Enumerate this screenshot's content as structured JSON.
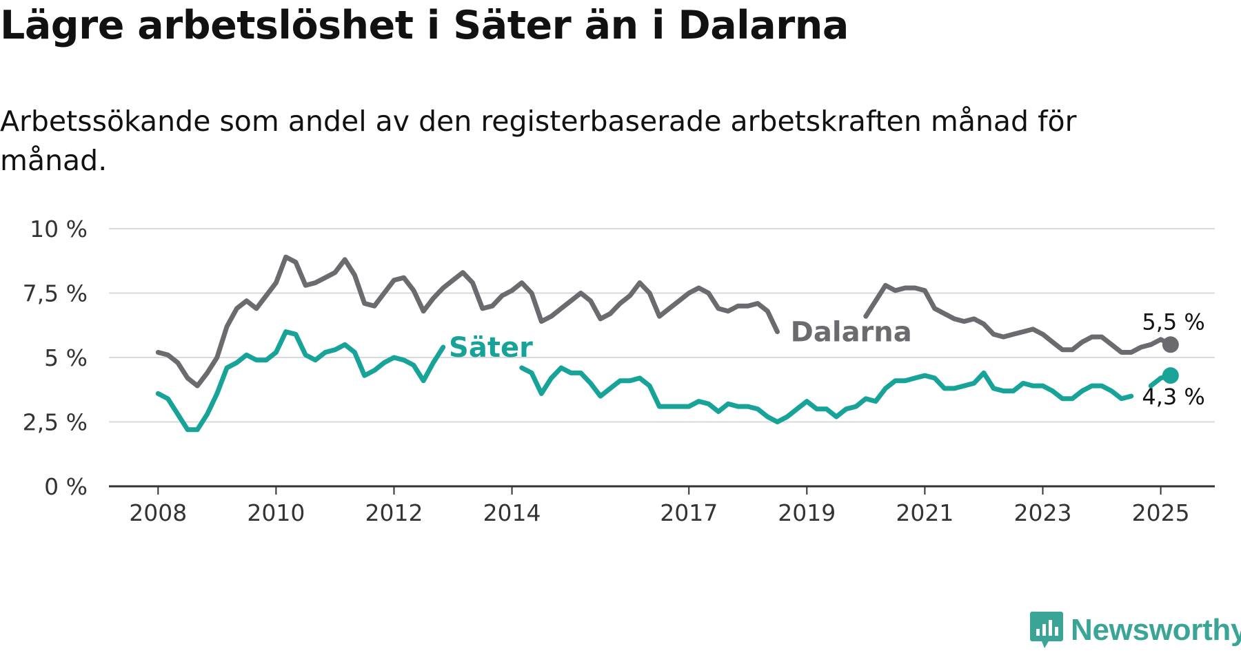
{
  "title": "Lägre arbetslöshet i Säter än i Dalarna",
  "subtitle": "Arbetssökande som andel av den registerbaserade arbetskraften månad för månad.",
  "brand": {
    "name": "Newsworthy",
    "icon": "newsworthy-logo-icon",
    "color": "#3aa596"
  },
  "chart_data": {
    "type": "line",
    "title": "Lägre arbetslöshet i Säter än i Dalarna",
    "subtitle": "Arbetssökande som andel av den registerbaserade arbetskraften månad för månad.",
    "xlabel": "",
    "ylabel": "",
    "x_ticks": [
      "2008",
      "2010",
      "2012",
      "2014",
      "2017",
      "2019",
      "2021",
      "2023",
      "2025"
    ],
    "y_ticks": [
      "0 %",
      "2,5 %",
      "5 %",
      "7,5 %",
      "10 %"
    ],
    "ylim": [
      0,
      10
    ],
    "xlim": [
      "2007-03",
      "2025-12"
    ],
    "grid": "horizontal",
    "legend": "inline-labels",
    "series": [
      {
        "name": "Dalarna",
        "color": "#6b6b6f",
        "end_label": "5,5 %",
        "points": [
          [
            "2008-01",
            5.2
          ],
          [
            "2008-03",
            5.1
          ],
          [
            "2008-05",
            4.8
          ],
          [
            "2008-07",
            4.2
          ],
          [
            "2008-09",
            3.9
          ],
          [
            "2008-11",
            4.4
          ],
          [
            "2009-01",
            5.0
          ],
          [
            "2009-03",
            6.2
          ],
          [
            "2009-05",
            6.9
          ],
          [
            "2009-07",
            7.2
          ],
          [
            "2009-09",
            6.9
          ],
          [
            "2009-11",
            7.4
          ],
          [
            "2010-01",
            7.9
          ],
          [
            "2010-03",
            8.9
          ],
          [
            "2010-05",
            8.7
          ],
          [
            "2010-07",
            7.8
          ],
          [
            "2010-09",
            7.9
          ],
          [
            "2010-11",
            8.1
          ],
          [
            "2011-01",
            8.3
          ],
          [
            "2011-03",
            8.8
          ],
          [
            "2011-05",
            8.2
          ],
          [
            "2011-07",
            7.1
          ],
          [
            "2011-09",
            7.0
          ],
          [
            "2011-11",
            7.5
          ],
          [
            "2012-01",
            8.0
          ],
          [
            "2012-03",
            8.1
          ],
          [
            "2012-05",
            7.6
          ],
          [
            "2012-07",
            6.8
          ],
          [
            "2012-09",
            7.3
          ],
          [
            "2012-11",
            7.7
          ],
          [
            "2013-01",
            8.0
          ],
          [
            "2013-03",
            8.3
          ],
          [
            "2013-05",
            7.9
          ],
          [
            "2013-07",
            6.9
          ],
          [
            "2013-09",
            7.0
          ],
          [
            "2013-11",
            7.4
          ],
          [
            "2014-01",
            7.6
          ],
          [
            "2014-03",
            7.9
          ],
          [
            "2014-05",
            7.5
          ],
          [
            "2014-07",
            6.4
          ],
          [
            "2014-09",
            6.6
          ],
          [
            "2014-11",
            6.9
          ],
          [
            "2015-01",
            7.2
          ],
          [
            "2015-03",
            7.5
          ],
          [
            "2015-05",
            7.2
          ],
          [
            "2015-07",
            6.5
          ],
          [
            "2015-09",
            6.7
          ],
          [
            "2015-11",
            7.1
          ],
          [
            "2016-01",
            7.4
          ],
          [
            "2016-03",
            7.9
          ],
          [
            "2016-05",
            7.5
          ],
          [
            "2016-07",
            6.6
          ],
          [
            "2016-09",
            6.9
          ],
          [
            "2016-11",
            7.2
          ],
          [
            "2017-01",
            7.5
          ],
          [
            "2017-03",
            7.7
          ],
          [
            "2017-05",
            7.5
          ],
          [
            "2017-07",
            6.9
          ],
          [
            "2017-09",
            6.8
          ],
          [
            "2017-11",
            7.0
          ],
          [
            "2018-01",
            7.0
          ],
          [
            "2018-03",
            7.1
          ],
          [
            "2018-05",
            6.8
          ],
          [
            "2018-07",
            6.0
          ],
          [
            "2018-09",
            null
          ],
          [
            "2020-01",
            6.6
          ],
          [
            "2020-03",
            7.2
          ],
          [
            "2020-05",
            7.8
          ],
          [
            "2020-07",
            7.6
          ],
          [
            "2020-09",
            7.7
          ],
          [
            "2020-11",
            7.7
          ],
          [
            "2021-01",
            7.6
          ],
          [
            "2021-03",
            6.9
          ],
          [
            "2021-05",
            6.7
          ],
          [
            "2021-07",
            6.5
          ],
          [
            "2021-09",
            6.4
          ],
          [
            "2021-11",
            6.5
          ],
          [
            "2022-01",
            6.3
          ],
          [
            "2022-03",
            5.9
          ],
          [
            "2022-05",
            5.8
          ],
          [
            "2022-07",
            5.9
          ],
          [
            "2022-09",
            6.0
          ],
          [
            "2022-11",
            6.1
          ],
          [
            "2023-01",
            5.9
          ],
          [
            "2023-03",
            5.6
          ],
          [
            "2023-05",
            5.3
          ],
          [
            "2023-07",
            5.3
          ],
          [
            "2023-09",
            5.6
          ],
          [
            "2023-11",
            5.8
          ],
          [
            "2024-01",
            5.8
          ],
          [
            "2024-03",
            5.5
          ],
          [
            "2024-05",
            5.2
          ],
          [
            "2024-07",
            5.2
          ],
          [
            "2024-09",
            5.4
          ],
          [
            "2024-11",
            5.5
          ],
          [
            "2025-01",
            5.7
          ],
          [
            "2025-03",
            5.5
          ]
        ]
      },
      {
        "name": "Säter",
        "color": "#17a398",
        "end_label": "4,3 %",
        "points": [
          [
            "2008-01",
            3.6
          ],
          [
            "2008-03",
            3.4
          ],
          [
            "2008-05",
            2.8
          ],
          [
            "2008-07",
            2.2
          ],
          [
            "2008-09",
            2.2
          ],
          [
            "2008-11",
            2.8
          ],
          [
            "2009-01",
            3.6
          ],
          [
            "2009-03",
            4.6
          ],
          [
            "2009-05",
            4.8
          ],
          [
            "2009-07",
            5.1
          ],
          [
            "2009-09",
            4.9
          ],
          [
            "2009-11",
            4.9
          ],
          [
            "2010-01",
            5.2
          ],
          [
            "2010-03",
            6.0
          ],
          [
            "2010-05",
            5.9
          ],
          [
            "2010-07",
            5.1
          ],
          [
            "2010-09",
            4.9
          ],
          [
            "2010-11",
            5.2
          ],
          [
            "2011-01",
            5.3
          ],
          [
            "2011-03",
            5.5
          ],
          [
            "2011-05",
            5.2
          ],
          [
            "2011-07",
            4.3
          ],
          [
            "2011-09",
            4.5
          ],
          [
            "2011-11",
            4.8
          ],
          [
            "2012-01",
            5.0
          ],
          [
            "2012-03",
            4.9
          ],
          [
            "2012-05",
            4.7
          ],
          [
            "2012-07",
            4.1
          ],
          [
            "2012-09",
            4.8
          ],
          [
            "2012-11",
            5.4
          ],
          [
            "2013-01",
            null
          ],
          [
            "2014-03",
            4.6
          ],
          [
            "2014-05",
            4.4
          ],
          [
            "2014-07",
            3.6
          ],
          [
            "2014-09",
            4.2
          ],
          [
            "2014-11",
            4.6
          ],
          [
            "2015-01",
            4.4
          ],
          [
            "2015-03",
            4.4
          ],
          [
            "2015-05",
            4.0
          ],
          [
            "2015-07",
            3.5
          ],
          [
            "2015-09",
            3.8
          ],
          [
            "2015-11",
            4.1
          ],
          [
            "2016-01",
            4.1
          ],
          [
            "2016-03",
            4.2
          ],
          [
            "2016-05",
            3.9
          ],
          [
            "2016-07",
            3.1
          ],
          [
            "2016-09",
            3.1
          ],
          [
            "2016-11",
            3.1
          ],
          [
            "2017-01",
            3.1
          ],
          [
            "2017-03",
            3.3
          ],
          [
            "2017-05",
            3.2
          ],
          [
            "2017-07",
            2.9
          ],
          [
            "2017-09",
            3.2
          ],
          [
            "2017-11",
            3.1
          ],
          [
            "2018-01",
            3.1
          ],
          [
            "2018-03",
            3.0
          ],
          [
            "2018-05",
            2.7
          ],
          [
            "2018-07",
            2.5
          ],
          [
            "2018-09",
            2.7
          ],
          [
            "2018-11",
            3.0
          ],
          [
            "2019-01",
            3.3
          ],
          [
            "2019-03",
            3.0
          ],
          [
            "2019-05",
            3.0
          ],
          [
            "2019-07",
            2.7
          ],
          [
            "2019-09",
            3.0
          ],
          [
            "2019-11",
            3.1
          ],
          [
            "2020-01",
            3.4
          ],
          [
            "2020-03",
            3.3
          ],
          [
            "2020-05",
            3.8
          ],
          [
            "2020-07",
            4.1
          ],
          [
            "2020-09",
            4.1
          ],
          [
            "2020-11",
            4.2
          ],
          [
            "2021-01",
            4.3
          ],
          [
            "2021-03",
            4.2
          ],
          [
            "2021-05",
            3.8
          ],
          [
            "2021-07",
            3.8
          ],
          [
            "2021-09",
            3.9
          ],
          [
            "2021-11",
            4.0
          ],
          [
            "2022-01",
            4.4
          ],
          [
            "2022-03",
            3.8
          ],
          [
            "2022-05",
            3.7
          ],
          [
            "2022-07",
            3.7
          ],
          [
            "2022-09",
            4.0
          ],
          [
            "2022-11",
            3.9
          ],
          [
            "2023-01",
            3.9
          ],
          [
            "2023-03",
            3.7
          ],
          [
            "2023-05",
            3.4
          ],
          [
            "2023-07",
            3.4
          ],
          [
            "2023-09",
            3.7
          ],
          [
            "2023-11",
            3.9
          ],
          [
            "2024-01",
            3.9
          ],
          [
            "2024-03",
            3.7
          ],
          [
            "2024-05",
            3.4
          ],
          [
            "2024-07",
            3.5
          ],
          [
            "2024-09",
            null
          ],
          [
            "2024-11",
            3.9
          ],
          [
            "2025-01",
            4.2
          ],
          [
            "2025-03",
            4.3
          ]
        ]
      }
    ]
  }
}
